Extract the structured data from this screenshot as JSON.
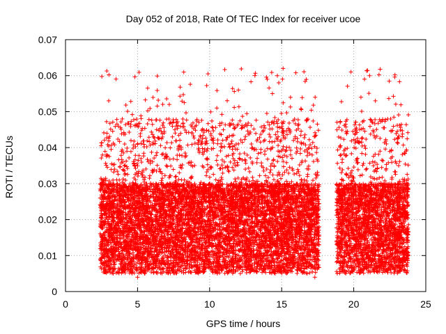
{
  "chart_data": {
    "type": "scatter",
    "title": "Day 052 of 2018, Rate Of TEC Index for receiver ucoe",
    "xlabel": "GPS time / hours",
    "ylabel": "ROTI / TECUs",
    "xlim": [
      0,
      25
    ],
    "ylim": [
      0,
      0.07
    ],
    "x_ticks": [
      0,
      5,
      10,
      15,
      20,
      25
    ],
    "y_ticks": [
      0,
      0.01,
      0.02,
      0.03,
      0.04,
      0.05,
      0.06,
      0.07
    ],
    "x_tick_labels": [
      "0",
      "5",
      "10",
      "15",
      "20",
      "25"
    ],
    "y_tick_labels": [
      "0",
      "0.01",
      "0.02",
      "0.03",
      "0.04",
      "0.05",
      "0.06",
      "0.07"
    ],
    "grid": true,
    "marker": "+",
    "marker_color": "#ff0000",
    "series": [
      {
        "name": "ROTI",
        "segments": [
          {
            "start": 2.4,
            "end": 17.6
          },
          {
            "start": 18.8,
            "end": 23.8
          }
        ],
        "baseline_band": [
          0.005,
          0.03
        ],
        "notable_points": [
          {
            "x": 15.1,
            "y": 0.062
          },
          {
            "x": 14.7,
            "y": 0.06
          },
          {
            "x": 14.0,
            "y": 0.059
          },
          {
            "x": 21.1,
            "y": 0.06
          },
          {
            "x": 12.0,
            "y": 0.056
          },
          {
            "x": 14.8,
            "y": 0.058
          },
          {
            "x": 3.0,
            "y": 0.053
          },
          {
            "x": 7.2,
            "y": 0.052
          },
          {
            "x": 10.5,
            "y": 0.051
          },
          {
            "x": 20.5,
            "y": 0.054
          },
          {
            "x": 21.5,
            "y": 0.053
          },
          {
            "x": 2.5,
            "y": 0.031
          },
          {
            "x": 17.3,
            "y": 0.004
          },
          {
            "x": 5.0,
            "y": 0.004
          }
        ]
      }
    ]
  }
}
